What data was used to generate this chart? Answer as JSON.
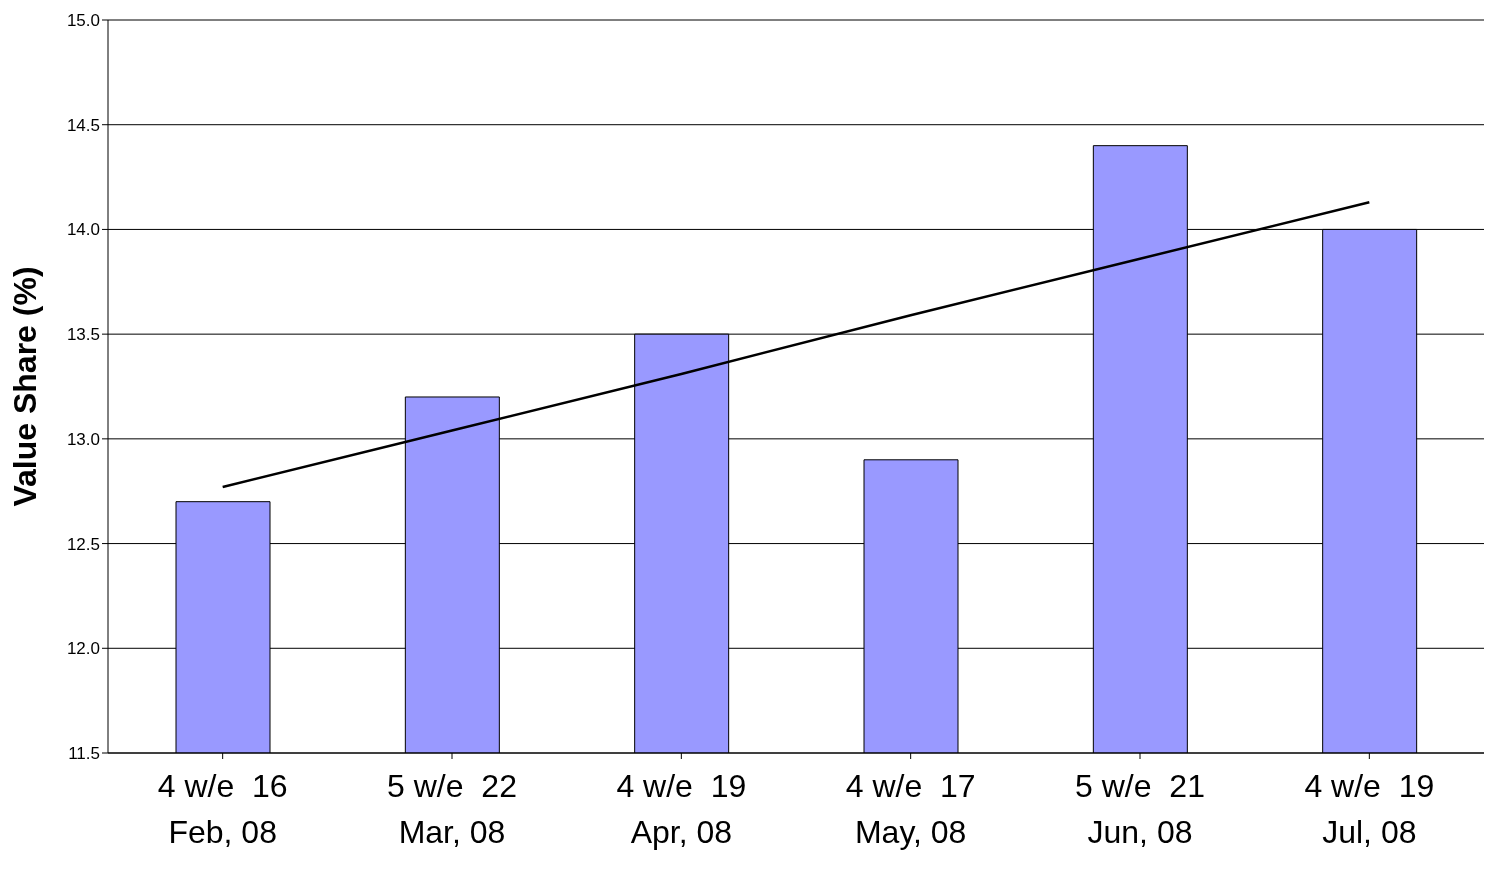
{
  "chart_data": {
    "type": "bar",
    "ylabel": "Value Share (%)",
    "categories": [
      "4 w/e  16 Feb, 08",
      "5 w/e  22 Mar, 08",
      "4 w/e  19 Apr, 08",
      "4 w/e  17 May, 08",
      "5 w/e  21 Jun, 08",
      "4 w/e  19 Jul, 08"
    ],
    "series": [
      {
        "color": "#9999ff",
        "values": [
          12.7,
          13.2,
          13.5,
          12.9,
          14.4,
          14.0
        ]
      },
      {
        "type": "line",
        "color": "#000000",
        "values": [
          12.77,
          13.04,
          13.31,
          13.59,
          13.86,
          14.13
        ]
      }
    ],
    "ylim": [
      11.5,
      15.0
    ],
    "yticks": [
      11.5,
      {
        "value": 12,
        "label": "12.0"
      },
      12.5,
      {
        "value": 13,
        "label": "13.0"
      },
      13.5,
      {
        "value": 14,
        "label": "14.0"
      },
      14.5,
      {
        "value": 15,
        "label": "15.0"
      }
    ],
    "grid": "y",
    "marker": "none",
    "line_style": "solid",
    "legend": false
  }
}
